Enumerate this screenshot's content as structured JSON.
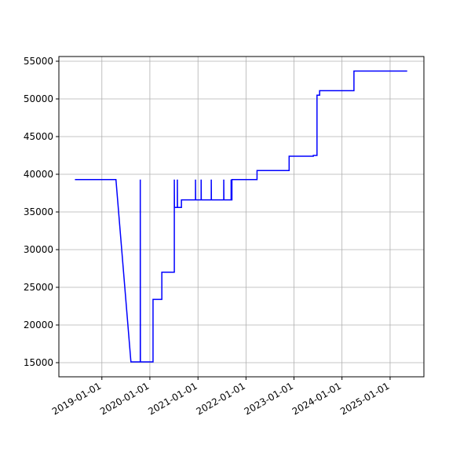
{
  "chart_data": {
    "type": "line",
    "x": [
      "2018-06-10",
      "2019-04-18",
      "2019-08-10",
      "2019-10-20",
      "2019-10-20",
      "2019-10-21",
      "2020-01-25",
      "2020-01-25",
      "2020-04-01",
      "2020-04-01",
      "2020-07-05",
      "2020-07-05",
      "2020-07-06",
      "2020-07-28",
      "2020-07-28",
      "2020-07-29",
      "2020-08-28",
      "2020-08-28",
      "2020-12-13",
      "2020-12-13",
      "2020-12-14",
      "2021-01-25",
      "2021-01-25",
      "2021-01-26",
      "2021-04-12",
      "2021-04-12",
      "2021-04-13",
      "2021-07-16",
      "2021-07-16",
      "2021-07-17",
      "2021-09-10",
      "2021-09-10",
      "2021-09-11",
      "2021-09-16",
      "2021-09-16",
      "2022-03-26",
      "2022-03-26",
      "2022-11-25",
      "2022-11-25",
      "2023-05-28",
      "2023-05-28",
      "2023-06-25",
      "2023-06-25",
      "2023-07-15",
      "2023-07-15",
      "2024-04-01",
      "2024-04-01",
      "2025-05-11"
    ],
    "series": [
      {
        "color": "#0000ff",
        "values": [
          39300,
          39300,
          15100,
          15100,
          39300,
          15100,
          15100,
          23400,
          23400,
          27000,
          27000,
          39300,
          35600,
          35600,
          39300,
          35600,
          35600,
          36600,
          36600,
          39300,
          36600,
          36600,
          39300,
          36600,
          36600,
          39300,
          36600,
          36600,
          39300,
          36600,
          36600,
          39300,
          36600,
          36600,
          39300,
          39300,
          40500,
          40500,
          42400,
          42400,
          42500,
          42500,
          50500,
          50500,
          51100,
          51100,
          53700,
          53700
        ]
      }
    ],
    "xlim": [
      "2018-02-08",
      "2025-09-15"
    ],
    "xticks": [
      "2019-01-01",
      "2020-01-01",
      "2021-01-01",
      "2022-01-01",
      "2023-01-01",
      "2024-01-01",
      "2025-01-01"
    ],
    "ylim": [
      13125,
      55625
    ],
    "yticks": [
      15000,
      20000,
      25000,
      30000,
      35000,
      40000,
      45000,
      50000,
      55000
    ],
    "grid": true
  }
}
